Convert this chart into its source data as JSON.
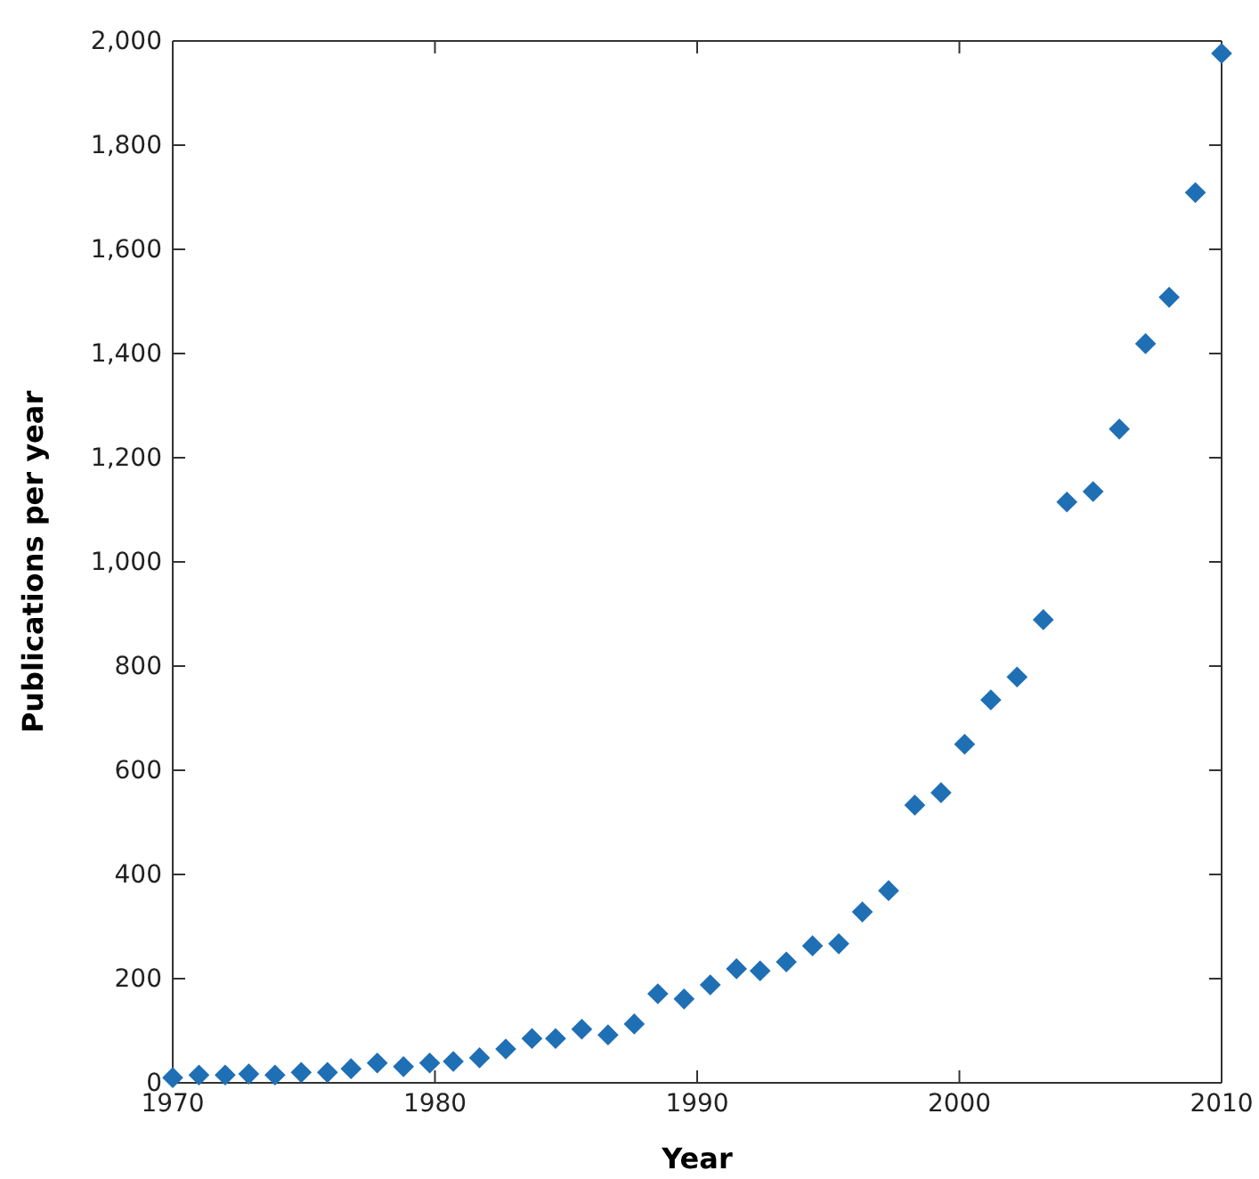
{
  "chart_data": {
    "type": "scatter",
    "xlabel": "Year",
    "ylabel": "Publications per year",
    "marker": "diamond",
    "grid": false,
    "xlim": [
      1970,
      2010
    ],
    "xticks": [
      1970,
      1980,
      1990,
      2000,
      2010
    ],
    "ylim": [
      0,
      2000
    ],
    "yticks": [
      {
        "value": 0,
        "label": "0"
      },
      {
        "value": 200,
        "label": "200"
      },
      {
        "value": 400,
        "label": "400"
      },
      {
        "value": 600,
        "label": "600"
      },
      {
        "value": 800,
        "label": "800"
      },
      {
        "value": 1000,
        "label": "1,000"
      },
      {
        "value": 1200,
        "label": "1,200"
      },
      {
        "value": 1400,
        "label": "1,400"
      },
      {
        "value": 1600,
        "label": "1,600"
      },
      {
        "value": 1800,
        "label": "1,800"
      },
      {
        "value": 2000,
        "label": "2,000"
      }
    ],
    "series": [
      {
        "color": "#1f6fb5",
        "x": [
          1970,
          1971.0,
          1972.0,
          1972.9,
          1973.9,
          1974.9,
          1975.9,
          1976.8,
          1977.8,
          1978.8,
          1979.8,
          1980.7,
          1981.7,
          1982.7,
          1983.7,
          1984.6,
          1985.6,
          1986.6,
          1987.6,
          1988.5,
          1989.5,
          1990.5,
          1991.5,
          1992.4,
          1993.4,
          1994.4,
          1995.4,
          1996.3,
          1997.3,
          1998.3,
          1999.3,
          2000.2,
          2001.2,
          2002.2,
          2003.2,
          2004.1,
          2005.1,
          2006.1,
          2007.1,
          2008.0,
          2009.0,
          2010.0
        ],
        "values": [
          10,
          15,
          15,
          17,
          15,
          20,
          20,
          27,
          38,
          31,
          38,
          41,
          48,
          65,
          85,
          85,
          103,
          92,
          113,
          171,
          161,
          188,
          219,
          215,
          232,
          263,
          267,
          328,
          369,
          533,
          557,
          650,
          735,
          779,
          889,
          1115,
          1135,
          1255,
          1419,
          1508,
          1709,
          1976
        ]
      }
    ]
  }
}
